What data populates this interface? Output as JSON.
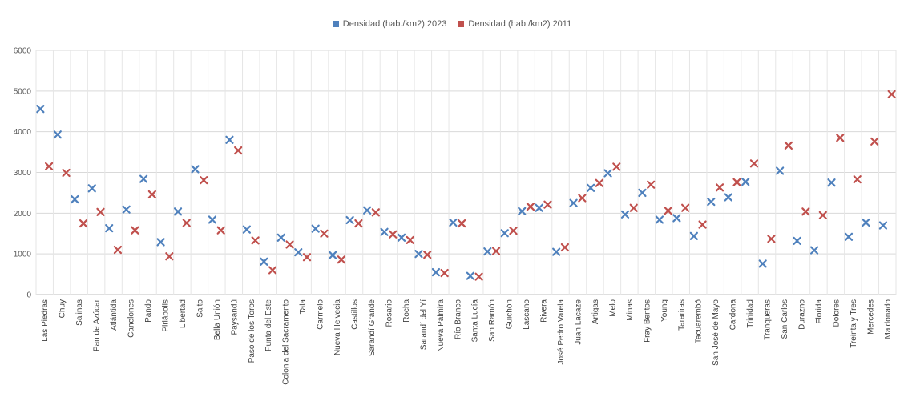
{
  "chart_data": {
    "type": "scatter",
    "title": "",
    "xlabel": "",
    "ylabel": "",
    "ylim": [
      0,
      6000
    ],
    "yticks": [
      0,
      1000,
      2000,
      3000,
      4000,
      5000,
      6000
    ],
    "grid": true,
    "legend_position": "top-center",
    "marker": "x",
    "categories": [
      "Las Piedras",
      "Chuy",
      "Salinas",
      "Pan de Azúcar",
      "Atlántida",
      "Canelones",
      "Pando",
      "Piriápolis",
      "Libertad",
      "Salto",
      "Bella Unión",
      "Paysandú",
      "Paso de los Toros",
      "Punta del Este",
      "Colonia del Sacramento",
      "Tala",
      "Carmelo",
      "Nueva Helvecia",
      "Castillos",
      "Sarandí Grande",
      "Rosario",
      "Rocha",
      "Sarandí del Yí",
      "Nueva Palmira",
      "Río Branco",
      "Santa Lucía",
      "San Ramón",
      "Guichón",
      "Lascano",
      "Rivera",
      "José Pedro Varela",
      "Juan Lacaze",
      "Artigas",
      "Melo",
      "Minas",
      "Fray Bentos",
      "Young",
      "Tarariras",
      "Tacuarembó",
      "San José de Mayo",
      "Cardona",
      "Trinidad",
      "Tranqueras",
      "San Carlos",
      "Durazno",
      "Florida",
      "Dolores",
      "Treinta y Tres",
      "Mercedes",
      "Maldonado"
    ],
    "series": [
      {
        "name": "Densidad (hab./km2) 2023",
        "color": "#4F81BD",
        "values": [
          4560,
          3930,
          2340,
          2610,
          1630,
          2090,
          2840,
          1290,
          2040,
          3080,
          1840,
          3800,
          1600,
          810,
          1400,
          1040,
          1620,
          970,
          1830,
          2070,
          1540,
          1400,
          1000,
          550,
          1770,
          460,
          1060,
          1510,
          2050,
          2130,
          1050,
          2250,
          2620,
          2980,
          1970,
          2500,
          1840,
          1880,
          1440,
          2280,
          2390,
          2770,
          760,
          3040,
          1320,
          1090,
          2750,
          1420,
          1770,
          1700
        ]
      },
      {
        "name": "Densidad (hab./km2) 2011",
        "color": "#C0504D",
        "values": [
          3150,
          2990,
          1750,
          2030,
          1100,
          1580,
          2460,
          940,
          1760,
          2810,
          1580,
          3540,
          1330,
          600,
          1230,
          920,
          1500,
          860,
          1750,
          2020,
          1480,
          1340,
          980,
          530,
          1750,
          440,
          1070,
          1570,
          2160,
          2210,
          1160,
          2370,
          2740,
          3140,
          2130,
          2700,
          2060,
          2130,
          1720,
          2630,
          2760,
          3220,
          1370,
          3660,
          2040,
          1950,
          3850,
          2830,
          3760,
          4920
        ]
      }
    ]
  }
}
